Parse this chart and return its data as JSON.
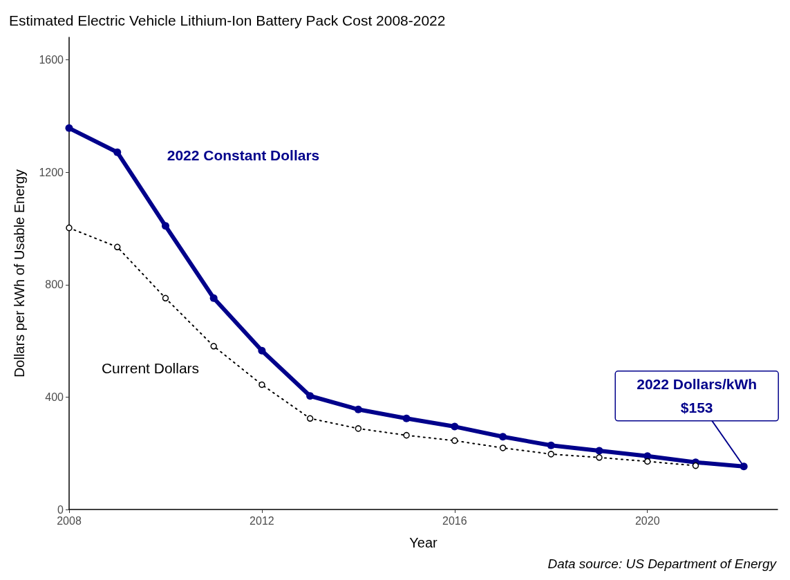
{
  "chart_data": {
    "type": "line",
    "title": "Estimated Electric Vehicle Lithium-Ion Battery Pack Cost 2008-2022",
    "xlabel": "Year",
    "ylabel": "Dollars per kWh of Usable Energy",
    "x": [
      2008,
      2009,
      2010,
      2011,
      2012,
      2013,
      2014,
      2015,
      2016,
      2017,
      2018,
      2019,
      2020,
      2021,
      2022
    ],
    "series": [
      {
        "name": "2022 Constant Dollars",
        "color": "#00008b",
        "line_style": "solid",
        "values": [
          1357,
          1271,
          1009,
          752,
          565,
          404,
          356,
          324,
          295,
          259,
          228,
          209,
          190,
          168,
          153
        ]
      },
      {
        "name": "Current Dollars",
        "color": "#000000",
        "line_style": "dotted",
        "values": [
          1002,
          934,
          752,
          581,
          444,
          324,
          288,
          264,
          245,
          219,
          197,
          185,
          171,
          156,
          null
        ]
      }
    ],
    "xlim": [
      2008,
      2022.7
    ],
    "xticks": [
      2008,
      2012,
      2016,
      2020
    ],
    "ylim": [
      0,
      1680
    ],
    "yticks": [
      0,
      400,
      800,
      1200,
      1600
    ],
    "grid": false,
    "legend": false,
    "marker": "circle",
    "annotations": [
      {
        "text": "2022 Dollars/kWh\n$153",
        "x": 2022,
        "y": 153
      },
      "Data source: US Department of Energy"
    ]
  }
}
